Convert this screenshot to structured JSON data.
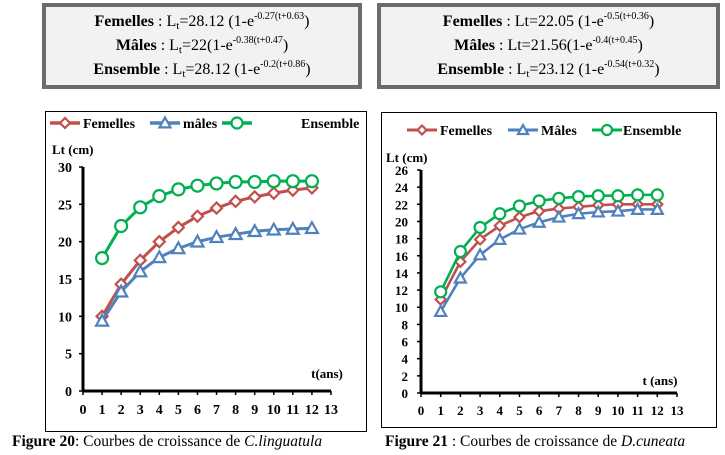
{
  "equations": [
    {
      "rows": [
        {
          "label": "Femelles",
          "sep": " :  ",
          "lhs": "L",
          "lhs_sub": "t",
          "eq": "=28.12 (1-e",
          "exp": "-0.27(t+0.63",
          "tail": ")"
        },
        {
          "label": "Mâles",
          "sep": " : ",
          "lhs": "L",
          "lhs_sub": "t",
          "eq": "=22(1-e",
          "exp": "-0.38(t+0.47",
          "tail": ")"
        },
        {
          "label": "Ensemble",
          "sep": " : ",
          "lhs": "L",
          "lhs_sub": "t",
          "eq": "=28.12 (1-e",
          "exp": "-0.2(t+0.86",
          "tail": ")"
        }
      ]
    },
    {
      "rows": [
        {
          "label": "Femelles",
          "sep": " :   ",
          "lhs": "Lt",
          "lhs_sub": "",
          "eq": "=22.05 (1-e",
          "exp": "-0.5(t+0.36",
          "tail": ")"
        },
        {
          "label": "Mâles",
          "sep": " : ",
          "lhs": "Lt",
          "lhs_sub": "",
          "eq": "=21.56(1-e",
          "exp": "-0.4(t+0.45",
          "tail": ")"
        },
        {
          "label": "Ensemble",
          "sep": " : ",
          "lhs": "L",
          "lhs_sub": "t",
          "eq": "=23.12 (1-e",
          "exp": "-0.54(t+0.32",
          "tail": ")"
        }
      ]
    }
  ],
  "captions": [
    {
      "prefix": "Figure 20",
      "middle": ": Courbes de croissance de ",
      "species": "C.linguatula"
    },
    {
      "prefix": "Figure 21",
      "middle": " : Courbes de croissance de ",
      "species": "D.cuneata"
    }
  ],
  "colors": {
    "femelles": "#c0504d",
    "males": "#4f81bd",
    "ensemble": "#00b050",
    "axis": "#000000"
  },
  "chart_data": [
    {
      "type": "line",
      "title": "",
      "xlabel": "t(ans)",
      "ylabel": "Lt (cm)",
      "xlim": [
        0,
        13
      ],
      "ylim": [
        0,
        30
      ],
      "xticks": [
        0,
        1,
        2,
        3,
        4,
        5,
        6,
        7,
        8,
        9,
        10,
        11,
        12,
        13
      ],
      "yticks": [
        0,
        5,
        10,
        15,
        20,
        25,
        30
      ],
      "grid": false,
      "legend": "top",
      "x": [
        1,
        2,
        3,
        4,
        5,
        6,
        7,
        8,
        9,
        10,
        11,
        12
      ],
      "series": [
        {
          "name": "Femelles",
          "marker": "diamond",
          "color_key": "femelles",
          "values": [
            10.0,
            14.3,
            17.5,
            20.0,
            21.9,
            23.4,
            24.5,
            25.4,
            26.0,
            26.5,
            26.9,
            27.2
          ]
        },
        {
          "name": "mâles",
          "marker": "triangle",
          "color_key": "males",
          "values": [
            9.4,
            13.3,
            16.0,
            17.9,
            19.1,
            20.0,
            20.6,
            21.0,
            21.4,
            21.6,
            21.7,
            21.8
          ]
        },
        {
          "name": "Ensemble",
          "marker": "circle",
          "color_key": "ensemble",
          "values": [
            17.8,
            22.1,
            24.6,
            26.1,
            27.0,
            27.5,
            27.8,
            28.0,
            28.0,
            28.1,
            28.1,
            28.1
          ]
        }
      ]
    },
    {
      "type": "line",
      "title": "",
      "xlabel": "t (ans)",
      "ylabel": "Lt (cm)",
      "xlim": [
        0,
        13
      ],
      "ylim": [
        0,
        26
      ],
      "xticks": [
        0,
        1,
        2,
        3,
        4,
        5,
        6,
        7,
        8,
        9,
        10,
        11,
        12,
        13
      ],
      "yticks": [
        0,
        2,
        4,
        6,
        8,
        10,
        12,
        14,
        16,
        18,
        20,
        22,
        24,
        26
      ],
      "grid": false,
      "legend": "top",
      "x": [
        1,
        2,
        3,
        4,
        5,
        6,
        7,
        8,
        9,
        10,
        11,
        12
      ],
      "series": [
        {
          "name": "Femelles",
          "marker": "diamond",
          "color_key": "femelles",
          "values": [
            10.9,
            15.3,
            17.9,
            19.5,
            20.5,
            21.2,
            21.5,
            21.7,
            21.9,
            22.0,
            22.0,
            22.0
          ]
        },
        {
          "name": "Mâles",
          "marker": "triangle",
          "color_key": "males",
          "values": [
            9.5,
            13.4,
            16.1,
            17.9,
            19.1,
            19.9,
            20.5,
            20.9,
            21.1,
            21.2,
            21.4,
            21.4
          ]
        },
        {
          "name": "Ensemble",
          "marker": "circle",
          "color_key": "ensemble",
          "values": [
            11.8,
            16.5,
            19.3,
            20.9,
            21.8,
            22.4,
            22.7,
            22.9,
            23.0,
            23.0,
            23.1,
            23.1
          ]
        }
      ]
    }
  ]
}
